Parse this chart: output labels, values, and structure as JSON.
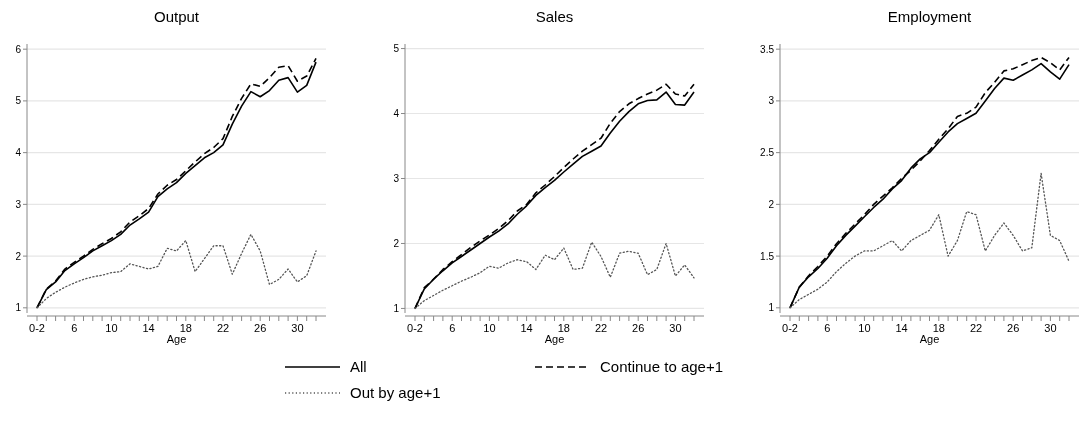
{
  "chart_data": [
    {
      "type": "line",
      "title": "Output",
      "xlabel": "Age",
      "categories": [
        "0-2",
        null,
        null,
        null,
        "6",
        null,
        null,
        null,
        "10",
        null,
        null,
        null,
        "14",
        null,
        null,
        null,
        "18",
        null,
        null,
        null,
        "22",
        null,
        null,
        null,
        "26",
        null,
        null,
        null,
        "30",
        null,
        null
      ],
      "ylim": [
        0.9,
        6.1
      ],
      "yticks": [
        1,
        2,
        3,
        4,
        5,
        6
      ],
      "grid": "y",
      "legend": "bottom",
      "series": [
        {
          "name": "All",
          "color": "#000000",
          "line_style": "solid",
          "values": [
            1,
            1.35,
            1.5,
            1.72,
            1.85,
            1.97,
            2.1,
            2.2,
            2.3,
            2.42,
            2.6,
            2.72,
            2.85,
            3.15,
            3.3,
            3.42,
            3.6,
            3.75,
            3.9,
            4.0,
            4.15,
            4.55,
            4.9,
            5.18,
            5.08,
            5.2,
            5.4,
            5.45,
            5.17,
            5.3,
            5.75
          ]
        },
        {
          "name": "Continue to age+1",
          "color": "#000000",
          "line_style": "dashed",
          "values": [
            1,
            1.36,
            1.52,
            1.75,
            1.88,
            2.0,
            2.13,
            2.24,
            2.34,
            2.47,
            2.66,
            2.78,
            2.92,
            3.2,
            3.37,
            3.48,
            3.65,
            3.82,
            3.98,
            4.1,
            4.27,
            4.7,
            5.05,
            5.33,
            5.28,
            5.45,
            5.65,
            5.68,
            5.38,
            5.48,
            5.82
          ]
        },
        {
          "name": "Out by age+1",
          "color": "#555555",
          "line_style": "dotted",
          "values": [
            1,
            1.18,
            1.3,
            1.4,
            1.48,
            1.55,
            1.6,
            1.63,
            1.68,
            1.7,
            1.85,
            1.8,
            1.75,
            1.8,
            2.15,
            2.1,
            2.3,
            1.7,
            1.95,
            2.2,
            2.2,
            1.65,
            2.05,
            2.42,
            2.1,
            1.45,
            1.55,
            1.75,
            1.5,
            1.62,
            2.1
          ]
        }
      ]
    },
    {
      "type": "line",
      "title": "Sales",
      "xlabel": "Age",
      "categories": [
        "0-2",
        null,
        null,
        null,
        "6",
        null,
        null,
        null,
        "10",
        null,
        null,
        null,
        "14",
        null,
        null,
        null,
        "18",
        null,
        null,
        null,
        "22",
        null,
        null,
        null,
        "26",
        null,
        null,
        null,
        "30",
        null,
        null
      ],
      "ylim": [
        0.93,
        5.07
      ],
      "yticks": [
        1,
        2,
        3,
        4,
        5
      ],
      "grid": "y",
      "series": [
        {
          "color": "#000000",
          "line_style": "solid",
          "values": [
            1,
            1.3,
            1.45,
            1.58,
            1.7,
            1.8,
            1.9,
            2.0,
            2.1,
            2.19,
            2.3,
            2.45,
            2.58,
            2.74,
            2.86,
            2.97,
            3.1,
            3.22,
            3.34,
            3.42,
            3.5,
            3.7,
            3.88,
            4.03,
            4.15,
            4.2,
            4.21,
            4.33,
            4.14,
            4.13,
            4.33
          ]
        },
        {
          "color": "#000000",
          "line_style": "dashed",
          "values": [
            1,
            1.32,
            1.45,
            1.6,
            1.72,
            1.83,
            1.94,
            2.04,
            2.13,
            2.23,
            2.35,
            2.5,
            2.6,
            2.78,
            2.9,
            3.03,
            3.17,
            3.3,
            3.42,
            3.52,
            3.62,
            3.85,
            4.03,
            4.15,
            4.23,
            4.3,
            4.36,
            4.45,
            4.3,
            4.27,
            4.45
          ]
        },
        {
          "color": "#555555",
          "line_style": "dotted",
          "values": [
            1,
            1.12,
            1.2,
            1.28,
            1.35,
            1.42,
            1.48,
            1.55,
            1.65,
            1.62,
            1.7,
            1.75,
            1.72,
            1.6,
            1.82,
            1.75,
            1.93,
            1.6,
            1.62,
            2.02,
            1.8,
            1.48,
            1.85,
            1.88,
            1.85,
            1.52,
            1.6,
            2.0,
            1.5,
            1.67,
            1.47
          ]
        }
      ]
    },
    {
      "type": "line",
      "title": "Employment",
      "xlabel": "Age",
      "categories": [
        "0-2",
        null,
        null,
        null,
        "6",
        null,
        null,
        null,
        "10",
        null,
        null,
        null,
        "14",
        null,
        null,
        null,
        "18",
        null,
        null,
        null,
        "22",
        null,
        null,
        null,
        "26",
        null,
        null,
        null,
        "30",
        null,
        null
      ],
      "ylim": [
        0.95,
        3.55
      ],
      "yticks": [
        1,
        1.5,
        2,
        2.5,
        3,
        3.5
      ],
      "grid": "y",
      "series": [
        {
          "color": "#000000",
          "line_style": "solid",
          "values": [
            1,
            1.2,
            1.3,
            1.38,
            1.48,
            1.6,
            1.7,
            1.79,
            1.88,
            1.97,
            2.05,
            2.15,
            2.23,
            2.35,
            2.44,
            2.5,
            2.6,
            2.7,
            2.78,
            2.83,
            2.88,
            3.0,
            3.12,
            3.22,
            3.2,
            3.25,
            3.3,
            3.36,
            3.28,
            3.21,
            3.35
          ]
        },
        {
          "color": "#000000",
          "line_style": "dashed",
          "values": [
            1,
            1.2,
            1.31,
            1.4,
            1.5,
            1.62,
            1.72,
            1.81,
            1.9,
            2.0,
            2.08,
            2.16,
            2.25,
            2.33,
            2.42,
            2.52,
            2.63,
            2.73,
            2.85,
            2.88,
            2.94,
            3.08,
            3.18,
            3.29,
            3.31,
            3.35,
            3.39,
            3.42,
            3.37,
            3.3,
            3.42
          ]
        },
        {
          "color": "#555555",
          "line_style": "dotted",
          "values": [
            1,
            1.08,
            1.13,
            1.18,
            1.25,
            1.35,
            1.43,
            1.5,
            1.55,
            1.55,
            1.6,
            1.65,
            1.55,
            1.65,
            1.7,
            1.75,
            1.9,
            1.5,
            1.65,
            1.93,
            1.9,
            1.55,
            1.7,
            1.82,
            1.7,
            1.55,
            1.58,
            2.3,
            1.7,
            1.65,
            1.45
          ]
        }
      ]
    }
  ]
}
